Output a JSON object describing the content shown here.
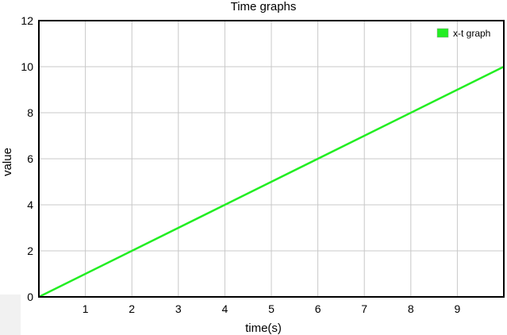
{
  "chart_data": {
    "type": "line",
    "title": "Time graphs",
    "xlabel": "time(s)",
    "ylabel": "value",
    "xlim": [
      0,
      10
    ],
    "ylim": [
      0,
      12
    ],
    "xticks": [
      1,
      2,
      3,
      4,
      5,
      6,
      7,
      8,
      9
    ],
    "yticks": [
      0,
      2,
      4,
      6,
      8,
      10,
      12
    ],
    "grid": true,
    "legend": "top-right",
    "series": [
      {
        "name": "x-t graph",
        "color": "#22ee22",
        "x": [
          0,
          10
        ],
        "y": [
          0,
          10
        ]
      }
    ]
  }
}
